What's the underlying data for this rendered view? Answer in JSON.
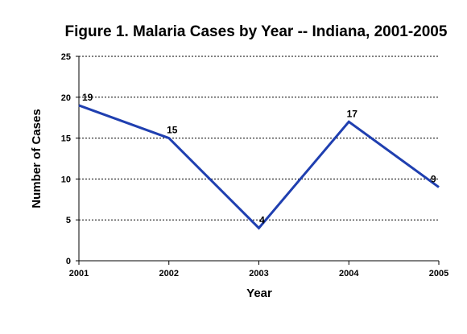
{
  "chart_data": {
    "type": "line",
    "title": "Figure 1. Malaria Cases by Year -- Indiana, 2001-2005",
    "xlabel": "Year",
    "ylabel": "Number of Cases",
    "categories": [
      "2001",
      "2002",
      "2003",
      "2004",
      "2005"
    ],
    "series": [
      {
        "values": [
          19,
          15,
          4,
          17,
          9
        ],
        "color": "#1f3fb0"
      }
    ],
    "ylim": [
      0,
      25
    ],
    "yticks": [
      0,
      5,
      10,
      15,
      20,
      25
    ],
    "grid": true,
    "grid_style": "dotted",
    "data_labels": true,
    "legend": "none"
  }
}
